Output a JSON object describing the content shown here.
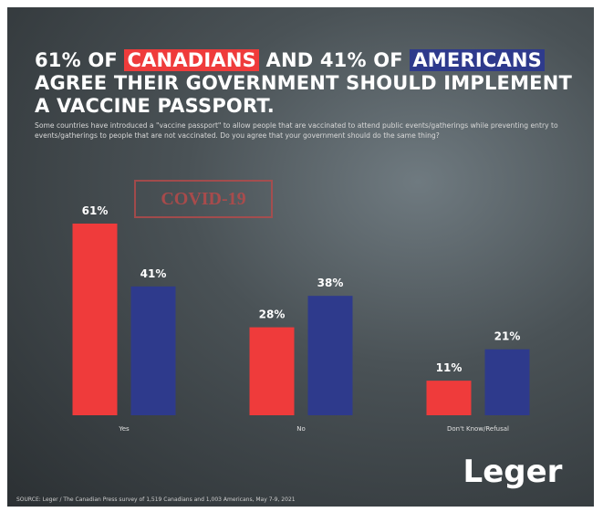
{
  "chart_data": {
    "type": "bar",
    "title_segments": [
      "61% OF ",
      " AND 41% OF ",
      " AGREE THEIR GOVERNMENT SHOULD IMPLEMENT A VACCINE PASSPORT."
    ],
    "subtitle": "Some countries have introduced a \"vaccine passport\" to allow people that are vaccinated to attend public events/gatherings while preventing entry to events/gatherings to people that are not vaccinated. Do you agree that your government should do the same thing?",
    "categories": [
      "Yes",
      "No",
      "Don't Know/Refusal"
    ],
    "series": [
      {
        "name": "CANADIANS",
        "color": "#ef3b3b",
        "values": [
          61,
          28,
          11
        ],
        "value_labels": [
          "61%",
          "28%",
          "11%"
        ]
      },
      {
        "name": "AMERICANS",
        "color": "#2e3a8c",
        "values": [
          41,
          38,
          21
        ],
        "value_labels": [
          "41%",
          "38%",
          "21%"
        ]
      }
    ],
    "ylim": [
      0,
      70
    ],
    "stamp": "COVID-19",
    "logo": "Leger",
    "source": "SOURCE: Leger / The Canadian Press survey of 1,519 Canadians and 1,003 Americans, May 7-9, 2021"
  }
}
